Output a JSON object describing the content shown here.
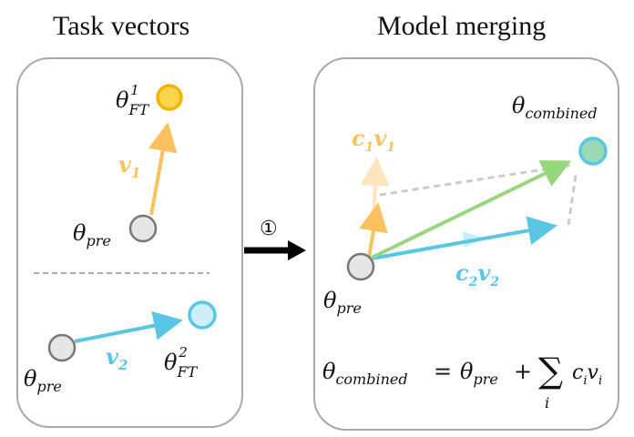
{
  "left_panel": {
    "title": "Task vectors",
    "theta_ft1": {
      "base": "θ",
      "sub": "FT",
      "sup": "1"
    },
    "v1": {
      "base": "v",
      "sub": "1"
    },
    "theta_pre_top": {
      "base": "θ",
      "sub": "pre"
    },
    "theta_ft2": {
      "base": "θ",
      "sub": "FT",
      "sup": "2"
    },
    "v2": {
      "base": "v",
      "sub": "2"
    },
    "theta_pre_bottom": {
      "base": "θ",
      "sub": "pre"
    }
  },
  "step": {
    "label": "①"
  },
  "right_panel": {
    "title": "Model merging",
    "theta_combined": {
      "base": "θ",
      "sub": "combined"
    },
    "c1v1": {
      "c": "c",
      "c_sub": "1",
      "v": "v",
      "v_sub": "1"
    },
    "c2v2": {
      "c": "c",
      "c_sub": "2",
      "v": "v",
      "v_sub": "2"
    },
    "theta_pre": {
      "base": "θ",
      "sub": "pre"
    },
    "formula": {
      "lhs_base": "θ",
      "lhs_sub": "combined",
      "equals": "=",
      "pre_base": "θ",
      "pre_sub": "pre",
      "plus": "+",
      "sum": "∑",
      "sum_index": "i",
      "c": "c",
      "c_sub": "i",
      "v": "v",
      "v_sub": "i"
    }
  },
  "colors": {
    "orange": "#fbc15e",
    "orange_light": "#fde5be",
    "yellow_fill": "#fbd64d",
    "yellow_stroke": "#f4b400",
    "cyan": "#59c6e6",
    "cyan_light": "#c9eef8",
    "cyan_fill": "#cdeffa",
    "green": "#98d67e",
    "green_fill": "#9ad9b3",
    "gray_node": "#e6e6e6",
    "dashed": "#cccccc"
  }
}
